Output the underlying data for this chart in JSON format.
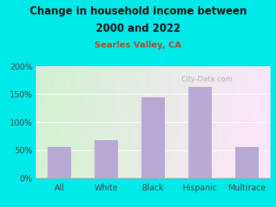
{
  "title_line1": "Change in household income between",
  "title_line2": "2000 and 2022",
  "subtitle": "Searles Valley, CA",
  "categories": [
    "All",
    "White",
    "Black",
    "Hispanic",
    "Multirace"
  ],
  "values": [
    55,
    68,
    145,
    163,
    55
  ],
  "bar_color": "#b8a8d4",
  "background_outer": "#00eaea",
  "title_color": "#111111",
  "subtitle_color": "#b05020",
  "tick_label_color": "#444444",
  "ylim": [
    0,
    200
  ],
  "yticks": [
    0,
    50,
    100,
    150,
    200
  ],
  "watermark": "City-Data.com"
}
